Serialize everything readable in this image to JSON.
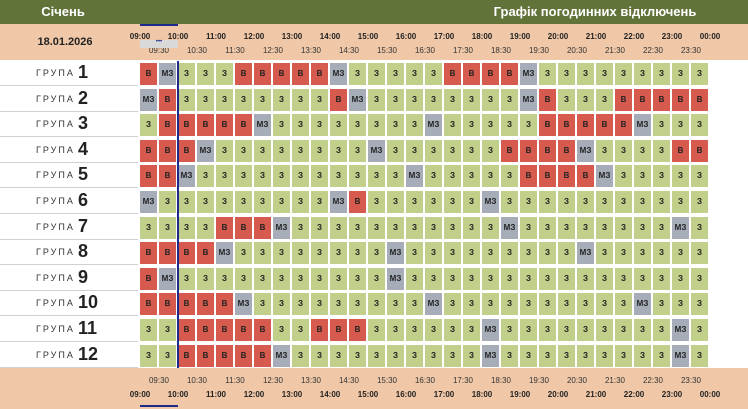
{
  "month": "Січень",
  "title": "Графік погодинних відключень",
  "date": "18.01.2026",
  "hour_labels": [
    "09:00",
    "10:00",
    "11:00",
    "12:00",
    "13:00",
    "14:00",
    "15:00",
    "16:00",
    "17:00",
    "18:00",
    "19:00",
    "20:00",
    "21:00",
    "22:00",
    "23:00",
    "00:00"
  ],
  "halfhour_labels": [
    "09:30",
    "10:30",
    "11:30",
    "12:30",
    "13:30",
    "14:30",
    "15:30",
    "16:30",
    "17:30",
    "18:30",
    "19:30",
    "20:30",
    "21:30",
    "22:30",
    "23:30"
  ],
  "group_word": "ГРУПА",
  "legend": {
    "on": "З",
    "off": "В",
    "maybe": "МЗ"
  },
  "colors": {
    "on": "#c0d08a",
    "off": "#d65b4e",
    "maybe": "#a6adb9",
    "header": "#f0c8a8",
    "title_bar": "#62733a",
    "current": "#1e2a8a"
  },
  "current_slot": 0,
  "groups": [
    {
      "number": "1",
      "slots": "BMZZZBBBBBMZZZZZBBBBMZZZZZZZZZ"
    },
    {
      "number": "2",
      "slots": "MBZZZZZZZZBMZZZZZZZZMBZZZBBBBB"
    },
    {
      "number": "3",
      "slots": "ZBBBBBMZZZZZZZZMZZZZZBBBBBMZZZ"
    },
    {
      "number": "4",
      "slots": "BBBMZZZZZZZZMZZZZZZBBBBMZZZZBB"
    },
    {
      "number": "5",
      "slots": "BBMZZZZZZZZZZZMZZZZZBBBBMZZZZZ"
    },
    {
      "number": "6",
      "slots": "MZZZZZZZZZMBZZZZZZMZZZZZZZZZZZ"
    },
    {
      "number": "7",
      "slots": "ZZZZBBBMZZZZZZZZZZZMZZZZZZZZMZ"
    },
    {
      "number": "8",
      "slots": "BBBBMZZZZZZZZMZZZZZZZZZMZZZZZZ"
    },
    {
      "number": "9",
      "slots": "BMZZZZZZZZZZZMZZZZZZZZZZZZZZZZ"
    },
    {
      "number": "10",
      "slots": "BBBBBMZZZZZZZZZMZZZZZZZZZZMZZZ"
    },
    {
      "number": "11",
      "slots": "ZZBBBBBZZBBBZZZZZZMZZZZZZZZZMZ"
    },
    {
      "number": "12",
      "slots": "ZZBBBBBMZZZZZZZZZZMZZZZZZZZZMZ"
    }
  ]
}
